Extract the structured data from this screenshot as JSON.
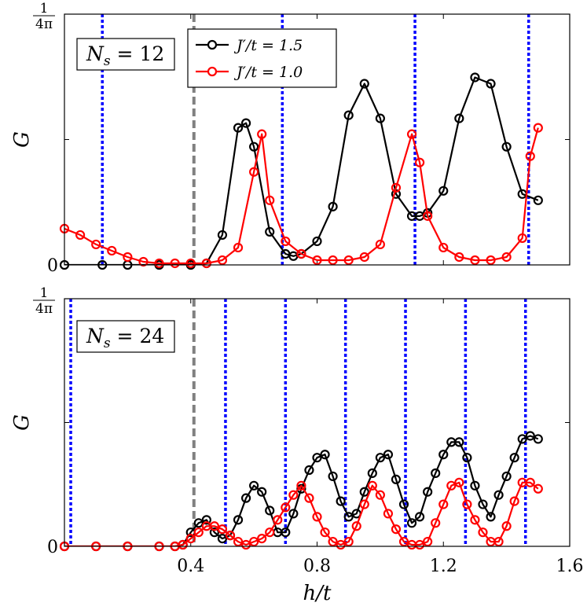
{
  "chart_data": [
    {
      "type": "line",
      "panel": "top",
      "xlim": [
        0,
        1.6
      ],
      "ylim": [
        0,
        0.0795775
      ],
      "ylabel": "G",
      "ytick_top": {
        "numerator": "1",
        "denominator": "4π"
      },
      "ytick_bottom": "0",
      "annotation": "N_s = 12",
      "legend_position": "top-center",
      "vlines_gray_dashed": [
        0.41
      ],
      "vlines_blue_dotted": [
        0.12,
        0.69,
        1.11,
        1.47
      ],
      "series": [
        {
          "name": "J′/t = 1.5",
          "color": "#000000",
          "x": [
            0.0,
            0.12,
            0.2,
            0.3,
            0.4,
            0.45,
            0.5,
            0.55,
            0.575,
            0.6,
            0.65,
            0.7,
            0.725,
            0.75,
            0.8,
            0.85,
            0.9,
            0.95,
            1.0,
            1.05,
            1.1,
            1.125,
            1.15,
            1.2,
            1.25,
            1.3,
            1.35,
            1.4,
            1.45,
            1.5
          ],
          "y": [
            0.0,
            0.0,
            0.0,
            0.0,
            0.0,
            0.0005,
            0.0095,
            0.0435,
            0.045,
            0.0375,
            0.0105,
            0.0035,
            0.0028,
            0.0035,
            0.0075,
            0.0185,
            0.0475,
            0.0575,
            0.0465,
            0.0225,
            0.0155,
            0.0155,
            0.0165,
            0.0235,
            0.0465,
            0.0595,
            0.0575,
            0.0375,
            0.0225,
            0.0205
          ]
        },
        {
          "name": "J′/t = 1.0",
          "color": "#ff0000",
          "x": [
            0.0,
            0.05,
            0.1,
            0.15,
            0.2,
            0.25,
            0.3,
            0.35,
            0.4,
            0.45,
            0.5,
            0.55,
            0.6,
            0.625,
            0.65,
            0.7,
            0.75,
            0.8,
            0.85,
            0.9,
            0.95,
            1.0,
            1.05,
            1.1,
            1.125,
            1.15,
            1.2,
            1.25,
            1.3,
            1.35,
            1.4,
            1.45,
            1.475,
            1.5
          ],
          "y": [
            0.0115,
            0.0095,
            0.0065,
            0.0045,
            0.0025,
            0.001,
            0.0005,
            0.0005,
            0.0005,
            0.0005,
            0.0015,
            0.0055,
            0.0295,
            0.0415,
            0.0205,
            0.0075,
            0.0035,
            0.0015,
            0.0015,
            0.0015,
            0.0025,
            0.0065,
            0.0245,
            0.0415,
            0.0325,
            0.0155,
            0.0055,
            0.0025,
            0.0015,
            0.0015,
            0.0025,
            0.0085,
            0.0345,
            0.0435
          ]
        }
      ]
    },
    {
      "type": "line",
      "panel": "bottom",
      "xlabel": "h/t",
      "xlim": [
        0,
        1.6
      ],
      "xticks": [
        0.4,
        0.8,
        1.2,
        1.6
      ],
      "xtick_labels": [
        "0.4",
        "0.8",
        "1.2",
        "1.6"
      ],
      "ylim": [
        0,
        0.0795775
      ],
      "ylabel": "G",
      "ytick_top": {
        "numerator": "1",
        "denominator": "4π"
      },
      "ytick_bottom": "0",
      "annotation": "N_s = 24",
      "vlines_gray_dashed": [
        0.41
      ],
      "vlines_blue_dotted": [
        0.02,
        0.51,
        0.7,
        0.89,
        1.08,
        1.27,
        1.46
      ],
      "series": [
        {
          "name": "J′/t = 1.5",
          "color": "#000000",
          "x": [
            0.0,
            0.1,
            0.2,
            0.3,
            0.35,
            0.375,
            0.4,
            0.425,
            0.45,
            0.475,
            0.5,
            0.525,
            0.55,
            0.575,
            0.6,
            0.625,
            0.65,
            0.675,
            0.7,
            0.725,
            0.75,
            0.775,
            0.8,
            0.825,
            0.85,
            0.875,
            0.9,
            0.925,
            0.95,
            0.975,
            1.0,
            1.025,
            1.05,
            1.075,
            1.1,
            1.125,
            1.15,
            1.175,
            1.2,
            1.225,
            1.25,
            1.275,
            1.3,
            1.325,
            1.35,
            1.375,
            1.4,
            1.425,
            1.45,
            1.475,
            1.5
          ],
          "y": [
            0.0,
            0.0,
            0.0,
            0.0,
            0.0,
            0.0005,
            0.0045,
            0.0075,
            0.0085,
            0.0045,
            0.0025,
            0.0035,
            0.0085,
            0.0155,
            0.0195,
            0.0175,
            0.0115,
            0.0045,
            0.0045,
            0.0105,
            0.0185,
            0.0245,
            0.0285,
            0.0295,
            0.0225,
            0.0145,
            0.0095,
            0.0105,
            0.0175,
            0.0235,
            0.0285,
            0.0295,
            0.0215,
            0.0135,
            0.0075,
            0.0095,
            0.0175,
            0.0235,
            0.0295,
            0.0335,
            0.0335,
            0.0285,
            0.0195,
            0.0135,
            0.0095,
            0.0165,
            0.0225,
            0.0285,
            0.0345,
            0.0355,
            0.0345
          ]
        },
        {
          "name": "J′/t = 1.0",
          "color": "#ff0000",
          "x": [
            0.0,
            0.1,
            0.2,
            0.3,
            0.35,
            0.375,
            0.4,
            0.425,
            0.45,
            0.475,
            0.5,
            0.525,
            0.55,
            0.575,
            0.6,
            0.625,
            0.65,
            0.675,
            0.7,
            0.725,
            0.75,
            0.775,
            0.8,
            0.825,
            0.85,
            0.875,
            0.9,
            0.925,
            0.95,
            0.975,
            1.0,
            1.025,
            1.05,
            1.075,
            1.1,
            1.125,
            1.15,
            1.175,
            1.2,
            1.225,
            1.25,
            1.275,
            1.3,
            1.325,
            1.35,
            1.375,
            1.4,
            1.425,
            1.45,
            1.475,
            1.5
          ],
          "y": [
            0.0,
            0.0,
            0.0,
            0.0,
            0.0,
            0.0005,
            0.0025,
            0.0045,
            0.0065,
            0.0065,
            0.0055,
            0.0035,
            0.0015,
            0.0005,
            0.0015,
            0.0025,
            0.0045,
            0.0085,
            0.0125,
            0.0165,
            0.0195,
            0.0155,
            0.0095,
            0.0045,
            0.0015,
            0.0005,
            0.0015,
            0.0065,
            0.0135,
            0.0195,
            0.0165,
            0.0105,
            0.0055,
            0.0015,
            0.0005,
            0.0005,
            0.0015,
            0.0075,
            0.0135,
            0.0195,
            0.0205,
            0.0135,
            0.0085,
            0.0045,
            0.0015,
            0.0015,
            0.0065,
            0.0145,
            0.0205,
            0.0205,
            0.0185
          ]
        }
      ]
    }
  ]
}
